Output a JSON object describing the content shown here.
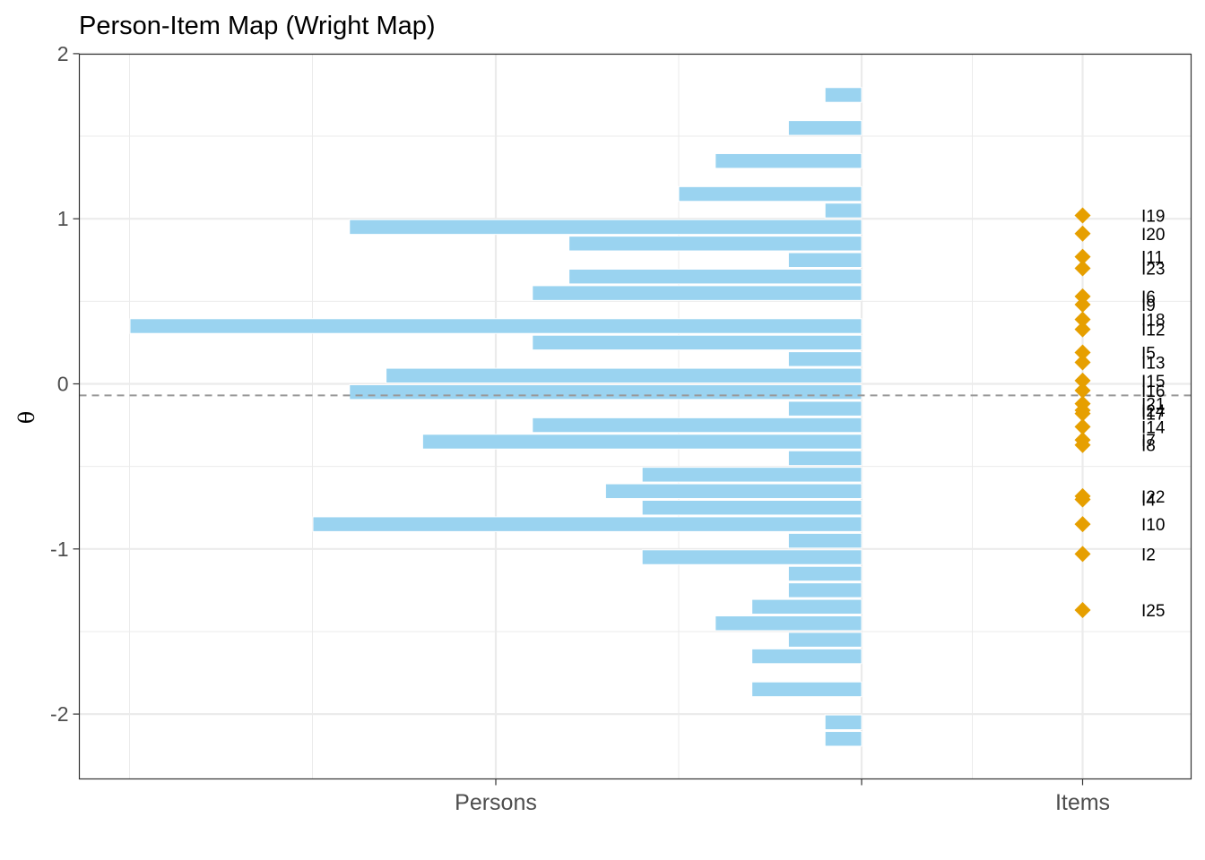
{
  "chart_data": {
    "type": "bar",
    "title": "Person-Item Map (Wright Map)",
    "ylabel": "θ",
    "xlabel": "",
    "categories": [
      "Persons",
      "Items"
    ],
    "ylim": [
      -2.34,
      2.0
    ],
    "yticks": [
      2,
      1,
      0,
      -1,
      -2
    ],
    "ytick_labels": [
      "2",
      "1",
      "0",
      "-1",
      "-2"
    ],
    "grid": true,
    "mean_person_theta": -0.07,
    "colors": {
      "person_bar": "#9AD3F0",
      "item_point": "#E69F00",
      "mean_line": "#999999",
      "grid": "#ebebeb",
      "panel_border": "#333333"
    },
    "persons": {
      "name": "Persons",
      "theta": [
        1.75,
        1.55,
        1.35,
        1.15,
        1.05,
        0.95,
        0.85,
        0.75,
        0.65,
        0.55,
        0.35,
        0.25,
        0.15,
        0.05,
        -0.05,
        -0.15,
        -0.25,
        -0.35,
        -0.45,
        -0.55,
        -0.65,
        -0.75,
        -0.85,
        -0.95,
        -1.05,
        -1.15,
        -1.25,
        -1.35,
        -1.45,
        -1.55,
        -1.65,
        -1.85,
        -2.05,
        -2.15
      ],
      "count": [
        1,
        2,
        4,
        5,
        1,
        14,
        8,
        2,
        8,
        9,
        20,
        9,
        2,
        13,
        14,
        2,
        9,
        12,
        2,
        6,
        7,
        6,
        15,
        2,
        6,
        2,
        2,
        3,
        4,
        2,
        3,
        3,
        1,
        1
      ]
    },
    "items": [
      {
        "label": "I19",
        "theta": 1.02
      },
      {
        "label": "I20",
        "theta": 0.91
      },
      {
        "label": "I11",
        "theta": 0.77
      },
      {
        "label": "I23",
        "theta": 0.7
      },
      {
        "label": "I6",
        "theta": 0.53
      },
      {
        "label": "I9",
        "theta": 0.48
      },
      {
        "label": "I18",
        "theta": 0.39
      },
      {
        "label": "I12",
        "theta": 0.33
      },
      {
        "label": "I5",
        "theta": 0.19
      },
      {
        "label": "I13",
        "theta": 0.13
      },
      {
        "label": "I15",
        "theta": 0.02
      },
      {
        "label": "I16",
        "theta": -0.04
      },
      {
        "label": "I21",
        "theta": -0.12
      },
      {
        "label": "I24",
        "theta": -0.16
      },
      {
        "label": "I17",
        "theta": -0.18
      },
      {
        "label": "I14",
        "theta": -0.26
      },
      {
        "label": "I7",
        "theta": -0.34
      },
      {
        "label": "I8",
        "theta": -0.37
      },
      {
        "label": "I22",
        "theta": -0.68
      },
      {
        "label": "I4",
        "theta": -0.7
      },
      {
        "label": "I10",
        "theta": -0.85
      },
      {
        "label": "I2",
        "theta": -1.03
      },
      {
        "label": "I25",
        "theta": -1.37
      }
    ]
  }
}
